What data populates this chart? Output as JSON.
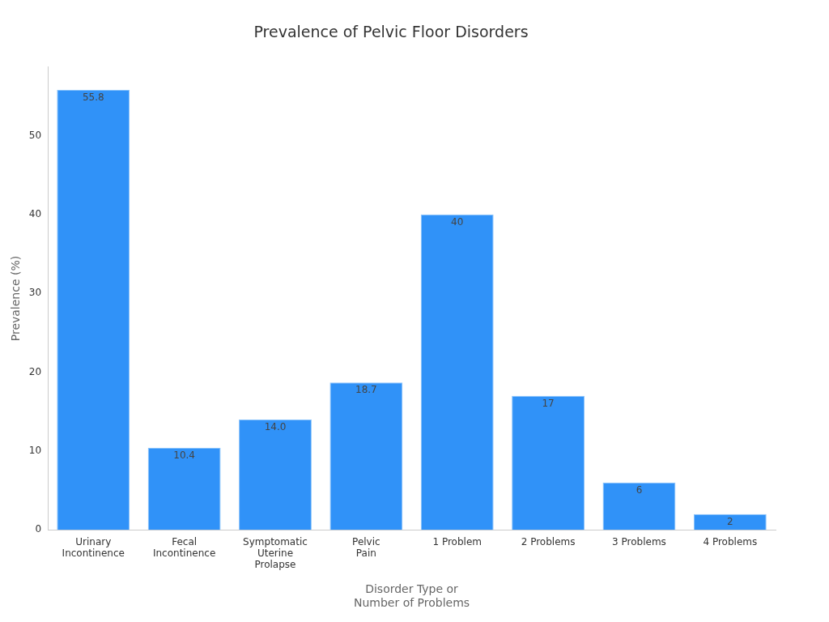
{
  "chart_data": {
    "type": "bar",
    "title": "Prevalence of Pelvic Floor Disorders",
    "xlabel": "Disorder Type or Number of Problems",
    "ylabel": "Prevalence (%)",
    "categories": [
      "Urinary Incontinence",
      "Fecal Incontinence",
      "Symptomatic Uterine Prolapse",
      "Pelvic Pain",
      "1 Problem",
      "2 Problems",
      "3 Problems",
      "4 Problems"
    ],
    "values": [
      55.8,
      10.4,
      14.0,
      18.7,
      40,
      17,
      6,
      2
    ],
    "value_labels": [
      "55.8",
      "10.4",
      "14.0",
      "18.7",
      "40",
      "17",
      "6",
      "2"
    ],
    "color": "#3092f8",
    "ylim": [
      0,
      58.7
    ],
    "yticks": [
      0,
      10,
      20,
      30,
      40,
      50
    ],
    "grid": false,
    "legend": false
  }
}
